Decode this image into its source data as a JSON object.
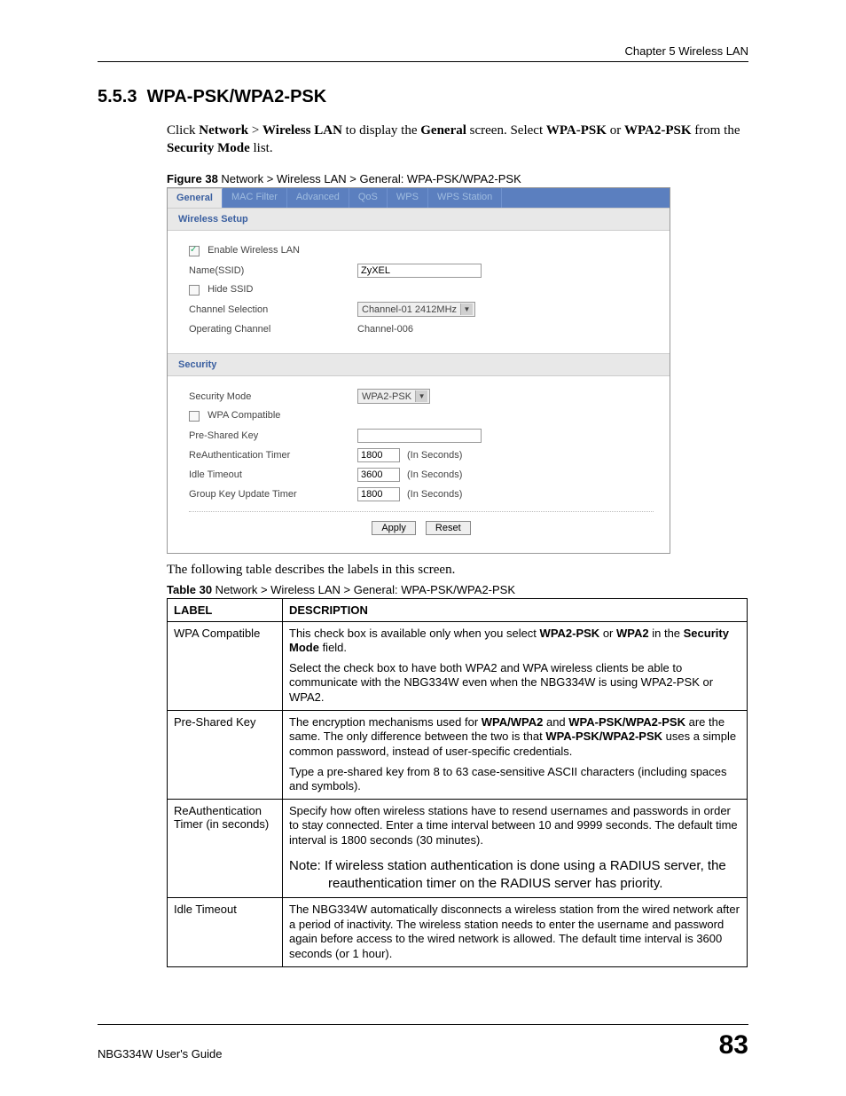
{
  "header": {
    "chapter": "Chapter 5 Wireless LAN"
  },
  "section": {
    "num": "5.5.3",
    "title": "WPA-PSK/WPA2-PSK"
  },
  "intro": {
    "pre": "Click ",
    "network": "Network",
    "gt": " > ",
    "wlan": "Wireless LAN",
    "mid1": " to display the ",
    "general": "General",
    "mid2": " screen. Select ",
    "wpapsk": "WPA-PSK",
    "or": " or ",
    "wpa2psk": "WPA2-PSK",
    "mid3": " from the ",
    "secmode": "Security Mode",
    "post": " list."
  },
  "figcap": {
    "b": "Figure 38",
    "rest": "   Network > Wireless LAN > General: WPA-PSK/WPA2-PSK"
  },
  "shot": {
    "tabs": [
      "General",
      "MAC Filter",
      "Advanced",
      "QoS",
      "WPS",
      "WPS Station"
    ],
    "grp1": "Wireless Setup",
    "enable": "Enable Wireless LAN",
    "name_lab": "Name(SSID)",
    "name_val": "ZyXEL",
    "hide": "Hide SSID",
    "chan_sel_lab": "Channel Selection",
    "chan_sel_val": "Channel-01 2412MHz",
    "op_chan_lab": "Operating Channel",
    "op_chan_val": "Channel-006",
    "grp2": "Security",
    "secmode_lab": "Security Mode",
    "secmode_val": "WPA2-PSK",
    "wpacomp": "WPA Compatible",
    "psk_lab": "Pre-Shared Key",
    "reauth_lab": "ReAuthentication Timer",
    "reauth_val": "1800",
    "idle_lab": "Idle Timeout",
    "idle_val": "3600",
    "gkey_lab": "Group Key Update Timer",
    "gkey_val": "1800",
    "insec": "(In Seconds)",
    "apply": "Apply",
    "reset": "Reset"
  },
  "afterfig": "The following table describes the labels in this screen.",
  "tblcap": {
    "b": "Table 30",
    "rest": "   Network > Wireless LAN > General: WPA-PSK/WPA2-PSK"
  },
  "tbl": {
    "h1": "LABEL",
    "h2": "DESCRIPTION",
    "r1l": "WPA Compatible",
    "r1a_pre": "This check box is available only when you select ",
    "r1a_b1": "WPA2-PSK",
    "r1a_or": " or ",
    "r1a_b2": "WPA2",
    "r1a_in": " in the ",
    "r1a_b3": "Security Mode",
    "r1a_post": " field.",
    "r1b": "Select the check box to have both WPA2 and WPA wireless clients be able to communicate with the NBG334W even when the NBG334W is using WPA2-PSK or WPA2.",
    "r2l": "Pre-Shared Key",
    "r2a_pre": "The encryption mechanisms used for ",
    "r2a_b1": "WPA/WPA2",
    "r2a_and": " and ",
    "r2a_b2": "WPA-PSK/WPA2-PSK",
    "r2a_mid": " are the same. The only difference between the two is that ",
    "r2a_b3": "WPA-PSK/WPA2-PSK",
    "r2a_post": " uses a simple common password, instead of user-specific credentials.",
    "r2b": "Type a pre-shared key from 8 to 63 case-sensitive ASCII characters (including spaces and symbols).",
    "r3l": "ReAuthentication Timer (in seconds)",
    "r3a": "Specify how often wireless stations have to resend usernames and passwords in order to stay connected. Enter a time interval between 10 and 9999 seconds. The default time interval is 1800 seconds (30 minutes).",
    "r3note": "Note: If wireless station authentication is done using a RADIUS server, the reauthentication timer on the RADIUS server has priority.",
    "r4l": "Idle Timeout",
    "r4a": "The NBG334W automatically disconnects a wireless station from the wired network after a period of inactivity. The wireless station needs to enter the username and password again before access to the wired network is allowed. The default time interval is 3600 seconds (or 1 hour)."
  },
  "footer": {
    "guide": "NBG334W User's Guide",
    "page": "83"
  }
}
